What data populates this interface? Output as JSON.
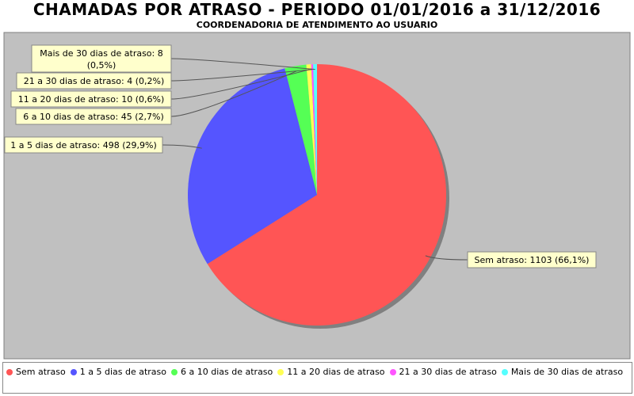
{
  "chart_data": {
    "type": "pie",
    "title": "CHAMADAS POR ATRASO - PERIODO 01/01/2016 a 31/12/2016",
    "subtitle": "COORDENADORIA DE ATENDIMENTO AO USUARIO",
    "legend_position": "bottom",
    "slices": [
      {
        "name": "Sem atraso",
        "value": 1103,
        "percent_label": "66,1%",
        "color": "#ff5555",
        "label": "Sem atraso: 1103 (66,1%)"
      },
      {
        "name": "1 a 5 dias de atraso",
        "value": 498,
        "percent_label": "29,9%",
        "color": "#5555ff",
        "label": "1 a 5 dias de atraso: 498 (29,9%)"
      },
      {
        "name": "6 a 10 dias de atraso",
        "value": 45,
        "percent_label": "2,7%",
        "color": "#55ff55",
        "label": "6 a 10 dias de atraso: 45 (2,7%)"
      },
      {
        "name": "11 a 20 dias de atraso",
        "value": 10,
        "percent_label": "0,6%",
        "color": "#ffff55",
        "label": "11 a 20 dias de atraso: 10 (0,6%)"
      },
      {
        "name": "21 a 30 dias de atraso",
        "value": 4,
        "percent_label": "0,2%",
        "color": "#ff55ff",
        "label": "21 a 30 dias de atraso: 4 (0,2%)"
      },
      {
        "name": "Mais de 30 dias de atraso",
        "value": 8,
        "percent_label": "0,5%",
        "color": "#55ffff",
        "label": "Mais de 30 dias de atraso: 8 (0,5%)"
      }
    ]
  }
}
